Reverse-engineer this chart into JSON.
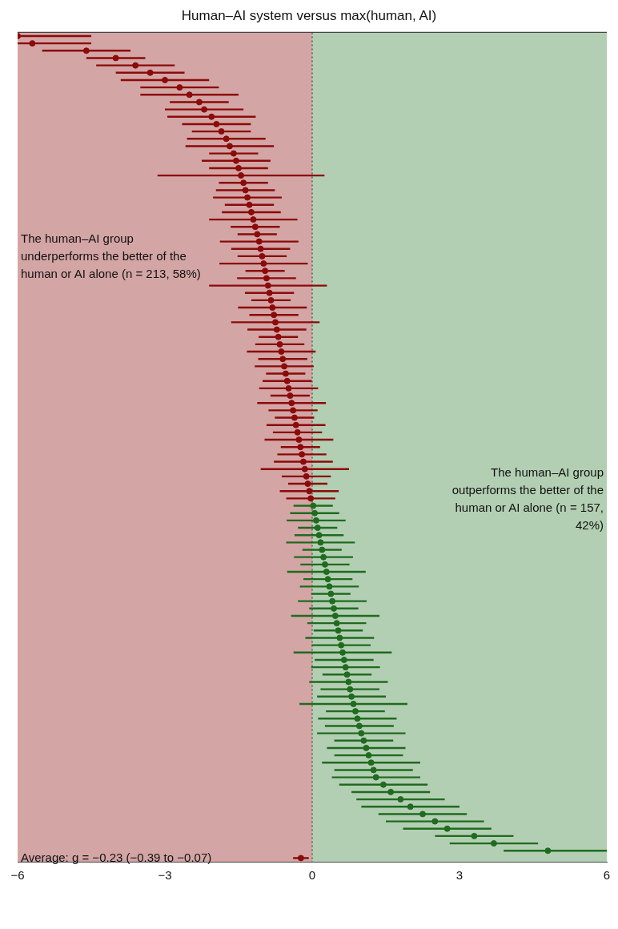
{
  "chart_data": {
    "type": "scatter",
    "orientation": "horizontal",
    "title": "Human–AI system versus max(human, AI)",
    "categories": [
      null,
      null,
      null,
      null,
      null,
      null,
      null,
      null,
      null,
      null,
      null,
      null,
      null,
      null,
      null,
      null,
      null,
      null,
      null,
      null,
      null,
      null,
      null,
      null,
      null,
      null,
      null,
      null,
      null,
      null,
      null,
      null,
      null,
      null,
      null,
      null,
      null,
      null,
      null,
      null,
      null,
      null,
      null,
      null,
      null,
      null,
      null,
      null,
      null,
      null,
      null,
      null,
      null,
      null,
      null,
      null,
      null,
      null,
      null,
      null,
      null,
      null,
      null,
      null,
      null,
      null,
      null,
      null,
      null,
      null,
      null,
      null,
      null,
      null,
      null,
      null,
      null,
      null,
      null,
      null,
      null,
      null,
      null,
      null,
      null,
      null,
      null,
      null,
      null,
      null,
      null,
      null,
      null,
      null,
      null,
      null,
      null,
      null,
      null,
      null,
      null,
      null,
      null,
      null,
      null,
      null,
      null,
      null,
      null,
      null,
      null,
      null,
      null
    ],
    "series": [
      {
        "color": "#8b0a0a",
        "values": [
          -6.0,
          -5.7,
          -4.6,
          -4.0,
          -3.6,
          -3.3,
          -3.0,
          -2.7,
          -2.5,
          -2.3,
          -2.2,
          -2.05,
          -1.95,
          -1.85,
          -1.75,
          -1.68,
          -1.6,
          -1.55,
          -1.5,
          -1.45,
          -1.4,
          -1.36,
          -1.32,
          -1.28,
          -1.24,
          -1.2,
          -1.16,
          -1.12,
          -1.08,
          -1.05,
          -1.02,
          -0.99,
          -0.96,
          -0.93,
          -0.9,
          -0.87,
          -0.84,
          -0.81,
          -0.78,
          -0.75,
          -0.72,
          -0.69,
          -0.66,
          -0.63,
          -0.6,
          -0.57,
          -0.54,
          -0.51,
          -0.48,
          -0.45,
          -0.42,
          -0.39,
          -0.36,
          -0.33,
          -0.3,
          -0.27,
          -0.24,
          -0.21,
          -0.18,
          -0.15,
          -0.12,
          -0.09,
          -0.06,
          -0.03,
          null,
          null,
          null,
          null,
          null,
          null,
          null,
          null,
          null,
          null,
          null,
          null,
          null,
          null,
          null,
          null,
          null,
          null,
          null,
          null,
          null,
          null,
          null,
          null,
          null,
          null,
          null,
          null,
          null,
          null,
          null,
          null,
          null,
          null,
          null,
          null,
          null,
          null,
          null,
          null,
          null,
          null,
          null,
          null,
          null,
          null,
          null,
          null,
          null
        ],
        "errors": [
          [
            -6.0,
            -4.5
          ],
          [
            -6.0,
            -4.5
          ],
          0.9,
          0.6,
          0.8,
          0.7,
          0.9,
          0.8,
          1.0,
          0.6,
          0.8,
          0.9,
          0.7,
          0.6,
          0.8,
          0.9,
          0.5,
          0.7,
          0.6,
          1.7,
          0.5,
          0.6,
          0.7,
          0.5,
          0.6,
          0.9,
          0.5,
          0.4,
          0.8,
          0.6,
          0.5,
          0.9,
          0.4,
          0.6,
          1.2,
          0.5,
          0.4,
          0.7,
          0.5,
          0.9,
          0.6,
          0.4,
          0.5,
          0.7,
          0.5,
          0.6,
          0.4,
          0.5,
          0.6,
          0.4,
          0.7,
          0.5,
          0.4,
          0.6,
          0.5,
          0.7,
          0.4,
          0.5,
          0.6,
          0.9,
          0.5,
          0.4,
          0.6,
          0.5,
          null,
          null,
          null,
          null,
          null,
          null,
          null,
          null,
          null,
          null,
          null,
          null,
          null,
          null,
          null,
          null,
          null,
          null,
          null,
          null,
          null,
          null,
          null,
          null,
          null,
          null,
          null,
          null,
          null,
          null,
          null,
          null,
          null,
          null,
          null,
          null,
          null,
          null,
          null,
          null,
          null,
          null,
          null,
          null,
          null,
          null,
          null,
          null,
          null
        ]
      },
      {
        "color": "#1f6b1f",
        "values": [
          null,
          null,
          null,
          null,
          null,
          null,
          null,
          null,
          null,
          null,
          null,
          null,
          null,
          null,
          null,
          null,
          null,
          null,
          null,
          null,
          null,
          null,
          null,
          null,
          null,
          null,
          null,
          null,
          null,
          null,
          null,
          null,
          null,
          null,
          null,
          null,
          null,
          null,
          null,
          null,
          null,
          null,
          null,
          null,
          null,
          null,
          null,
          null,
          null,
          null,
          null,
          null,
          null,
          null,
          null,
          null,
          null,
          null,
          null,
          null,
          null,
          null,
          null,
          null,
          0.02,
          0.05,
          0.08,
          0.11,
          0.14,
          0.17,
          0.2,
          0.23,
          0.26,
          0.29,
          0.32,
          0.35,
          0.38,
          0.41,
          0.44,
          0.47,
          0.5,
          0.53,
          0.56,
          0.59,
          0.62,
          0.65,
          0.68,
          0.71,
          0.74,
          0.77,
          0.8,
          0.84,
          0.88,
          0.92,
          0.96,
          1.0,
          1.05,
          1.1,
          1.15,
          1.2,
          1.25,
          1.3,
          1.45,
          1.6,
          1.8,
          2.0,
          2.25,
          2.5,
          2.75,
          3.3,
          3.7,
          4.8,
          null
        ],
        "errors": [
          null,
          null,
          null,
          null,
          null,
          null,
          null,
          null,
          null,
          null,
          null,
          null,
          null,
          null,
          null,
          null,
          null,
          null,
          null,
          null,
          null,
          null,
          null,
          null,
          null,
          null,
          null,
          null,
          null,
          null,
          null,
          null,
          null,
          null,
          null,
          null,
          null,
          null,
          null,
          null,
          null,
          null,
          null,
          null,
          null,
          null,
          null,
          null,
          null,
          null,
          null,
          null,
          null,
          null,
          null,
          null,
          null,
          null,
          null,
          null,
          null,
          null,
          null,
          null,
          0.4,
          0.5,
          0.6,
          0.4,
          0.5,
          0.7,
          0.4,
          0.6,
          0.5,
          0.8,
          0.5,
          0.6,
          0.4,
          0.7,
          0.5,
          0.9,
          0.6,
          0.5,
          0.7,
          0.6,
          1.0,
          0.6,
          0.7,
          0.5,
          0.8,
          0.6,
          0.7,
          1.1,
          0.6,
          0.8,
          0.7,
          0.9,
          0.6,
          0.8,
          0.7,
          1.0,
          0.8,
          0.9,
          0.9,
          0.8,
          0.9,
          1.0,
          0.9,
          1.0,
          0.9,
          0.8,
          0.9,
          [
            3.9,
            6.0
          ],
          null
        ]
      },
      {
        "color": "#8b0a0a",
        "values": [
          null,
          null,
          null,
          null,
          null,
          null,
          null,
          null,
          null,
          null,
          null,
          null,
          null,
          null,
          null,
          null,
          null,
          null,
          null,
          null,
          null,
          null,
          null,
          null,
          null,
          null,
          null,
          null,
          null,
          null,
          null,
          null,
          null,
          null,
          null,
          null,
          null,
          null,
          null,
          null,
          null,
          null,
          null,
          null,
          null,
          null,
          null,
          null,
          null,
          null,
          null,
          null,
          null,
          null,
          null,
          null,
          null,
          null,
          null,
          null,
          null,
          null,
          null,
          null,
          null,
          null,
          null,
          null,
          null,
          null,
          null,
          null,
          null,
          null,
          null,
          null,
          null,
          null,
          null,
          null,
          null,
          null,
          null,
          null,
          null,
          null,
          null,
          null,
          null,
          null,
          null,
          null,
          null,
          null,
          null,
          null,
          null,
          null,
          null,
          null,
          null,
          null,
          null,
          null,
          null,
          null,
          null,
          null,
          null,
          null,
          null,
          null,
          -0.23
        ],
        "errors": [
          null,
          null,
          null,
          null,
          null,
          null,
          null,
          null,
          null,
          null,
          null,
          null,
          null,
          null,
          null,
          null,
          null,
          null,
          null,
          null,
          null,
          null,
          null,
          null,
          null,
          null,
          null,
          null,
          null,
          null,
          null,
          null,
          null,
          null,
          null,
          null,
          null,
          null,
          null,
          null,
          null,
          null,
          null,
          null,
          null,
          null,
          null,
          null,
          null,
          null,
          null,
          null,
          null,
          null,
          null,
          null,
          null,
          null,
          null,
          null,
          null,
          null,
          null,
          null,
          null,
          null,
          null,
          null,
          null,
          null,
          null,
          null,
          null,
          null,
          null,
          null,
          null,
          null,
          null,
          null,
          null,
          null,
          null,
          null,
          null,
          null,
          null,
          null,
          null,
          null,
          null,
          null,
          null,
          null,
          null,
          null,
          null,
          null,
          null,
          null,
          null,
          null,
          null,
          null,
          null,
          null,
          null,
          null,
          null,
          null,
          null,
          null,
          [
            -0.39,
            -0.07
          ]
        ]
      }
    ],
    "xlim": [
      -6,
      6
    ],
    "xticks": [
      -6,
      -3,
      0,
      3,
      6
    ],
    "tick_labels": "x",
    "grid": false,
    "legend": false,
    "marker": "circle",
    "bands": [
      {
        "axis": "x",
        "from": -6,
        "to": 0,
        "color": "#d4a5a5"
      },
      {
        "axis": "x",
        "from": 0,
        "to": 6,
        "color": "#b3cfb3"
      }
    ],
    "ref_lines": [
      {
        "axis": "x",
        "value": 0,
        "line_style": "dotted",
        "color": "#444444"
      }
    ],
    "annotations": [
      "The human–AI group underperforms the better of the human or AI alone (n = 213, 58%)",
      "The human–AI group outperforms the better of the human or AI alone (n = 157, 42%)",
      "Average: g = −0.23 (−0.39 to −0.07)"
    ]
  }
}
